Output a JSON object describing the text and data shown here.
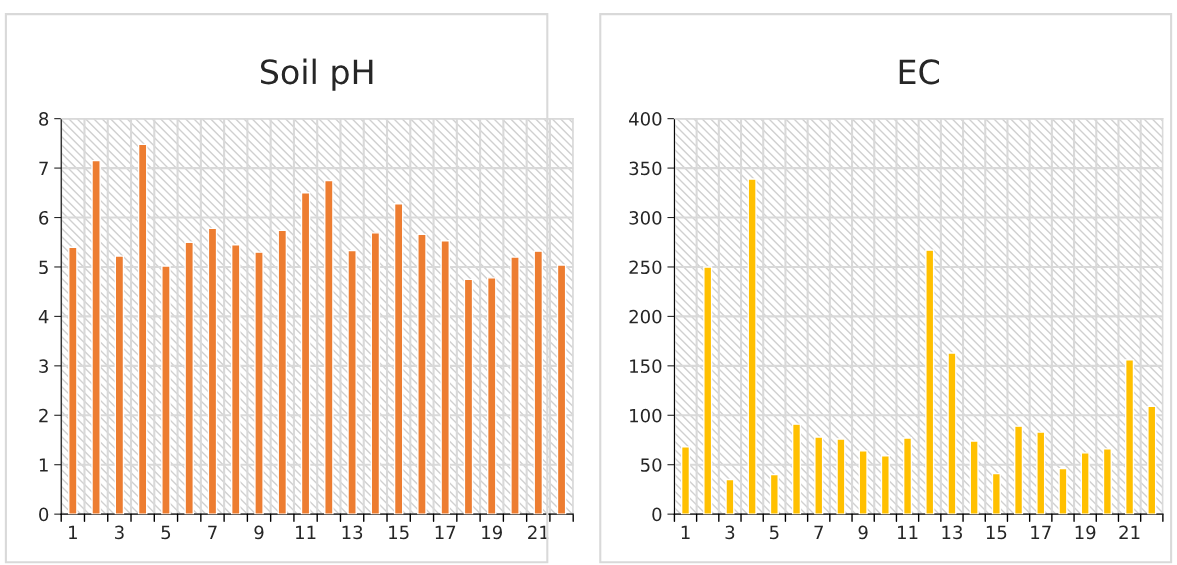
{
  "chart_data": [
    {
      "type": "bar",
      "title": "Soil pH",
      "categories": [
        "1",
        null,
        "3",
        null,
        "5",
        null,
        "7",
        null,
        "9",
        null,
        "11",
        null,
        "13",
        null,
        "15",
        null,
        "17",
        null,
        "19",
        null,
        "21",
        null
      ],
      "values": [
        5.4,
        7.15,
        5.22,
        7.48,
        5.02,
        5.5,
        5.78,
        5.45,
        5.3,
        5.74,
        6.5,
        6.75,
        5.33,
        5.69,
        6.28,
        5.66,
        5.53,
        4.75,
        4.78,
        5.2,
        5.32,
        5.04
      ],
      "color": "#ed7d31",
      "ylim": [
        0,
        8
      ],
      "yticks": [
        0,
        1,
        2,
        3,
        4,
        5,
        6,
        7,
        8
      ],
      "grid": true
    },
    {
      "type": "bar",
      "title": "EC",
      "categories": [
        "1",
        null,
        "3",
        null,
        "5",
        null,
        "7",
        null,
        "9",
        null,
        "11",
        null,
        "13",
        null,
        "15",
        null,
        "17",
        null,
        "19",
        null,
        "21",
        null
      ],
      "values": [
        68,
        250,
        35,
        339,
        40,
        91,
        78,
        76,
        64,
        59,
        77,
        267,
        163,
        74,
        41,
        89,
        83,
        46,
        62,
        66,
        156,
        109
      ],
      "color": "#ffc000",
      "ylim": [
        0,
        400
      ],
      "yticks": [
        0,
        50,
        100,
        150,
        200,
        250,
        300,
        350,
        400
      ],
      "grid": true
    }
  ]
}
